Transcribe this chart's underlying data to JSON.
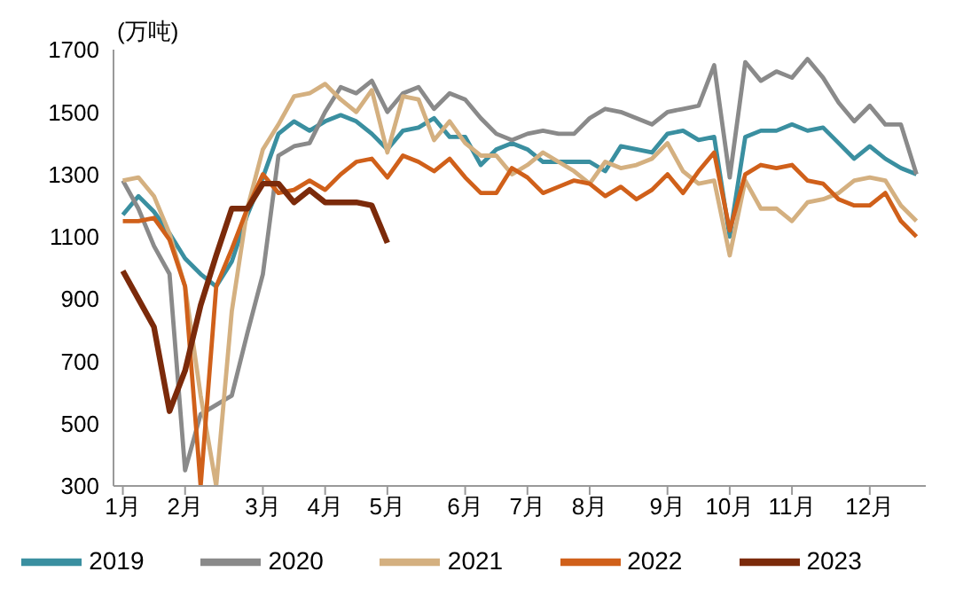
{
  "chart_data": {
    "type": "line",
    "ylabel": "(万吨)",
    "categories": [
      "1月",
      null,
      null,
      null,
      "2月",
      null,
      null,
      null,
      null,
      "3月",
      null,
      null,
      null,
      "4月",
      null,
      null,
      null,
      "5月",
      null,
      null,
      null,
      null,
      "6月",
      null,
      null,
      null,
      "7月",
      null,
      null,
      null,
      "8月",
      null,
      null,
      null,
      null,
      "9月",
      null,
      null,
      null,
      "10月",
      null,
      null,
      null,
      "11月",
      null,
      null,
      null,
      null,
      "12月",
      null,
      null,
      null
    ],
    "ylim": [
      300,
      1700
    ],
    "yticks": [
      300,
      500,
      700,
      900,
      1100,
      1300,
      1500,
      1700
    ],
    "grid": false,
    "legend": "bottom",
    "marker": "none",
    "line_style": "solid",
    "series": [
      {
        "name": "2019",
        "color": "#3a8fa0",
        "values": [
          1170,
          1230,
          1180,
          1110,
          1030,
          980,
          940,
          1020,
          1170,
          1290,
          1430,
          1470,
          1440,
          1470,
          1490,
          1470,
          1430,
          1380,
          1440,
          1450,
          1480,
          1420,
          1420,
          1330,
          1380,
          1400,
          1380,
          1340,
          1340,
          1340,
          1340,
          1310,
          1390,
          1380,
          1370,
          1430,
          1440,
          1410,
          1420,
          1100,
          1420,
          1440,
          1440,
          1460,
          1440,
          1450,
          1400,
          1350,
          1390,
          1350,
          1320,
          1300
        ]
      },
      {
        "name": "2020",
        "color": "#8a8a8a",
        "values": [
          1280,
          1190,
          1070,
          980,
          350,
          530,
          560,
          590,
          790,
          980,
          1360,
          1390,
          1400,
          1500,
          1580,
          1560,
          1600,
          1500,
          1560,
          1580,
          1510,
          1560,
          1540,
          1480,
          1430,
          1410,
          1430,
          1440,
          1430,
          1430,
          1480,
          1510,
          1500,
          1480,
          1460,
          1500,
          1510,
          1520,
          1650,
          1290,
          1660,
          1600,
          1630,
          1610,
          1670,
          1610,
          1530,
          1470,
          1520,
          1460,
          1460,
          1300
        ]
      },
      {
        "name": "2021",
        "color": "#d4b080",
        "values": [
          1280,
          1290,
          1230,
          1110,
          940,
          590,
          300,
          860,
          1190,
          1380,
          1460,
          1550,
          1560,
          1590,
          1540,
          1500,
          1570,
          1370,
          1550,
          1540,
          1410,
          1470,
          1400,
          1360,
          1360,
          1300,
          1330,
          1370,
          1340,
          1310,
          1270,
          1340,
          1320,
          1330,
          1350,
          1400,
          1310,
          1270,
          1280,
          1040,
          1280,
          1190,
          1190,
          1150,
          1210,
          1220,
          1240,
          1280,
          1290,
          1280,
          1200,
          1150
        ]
      },
      {
        "name": "2022",
        "color": "#d0601a",
        "values": [
          1150,
          1150,
          1160,
          1090,
          940,
          300,
          940,
          1060,
          1190,
          1300,
          1240,
          1250,
          1280,
          1250,
          1300,
          1340,
          1350,
          1290,
          1360,
          1340,
          1310,
          1350,
          1290,
          1240,
          1240,
          1320,
          1290,
          1240,
          1260,
          1280,
          1270,
          1230,
          1260,
          1220,
          1250,
          1300,
          1240,
          1310,
          1370,
          1120,
          1300,
          1330,
          1320,
          1330,
          1280,
          1270,
          1220,
          1200,
          1200,
          1240,
          1150,
          1100
        ]
      },
      {
        "name": "2023",
        "color": "#7b2a0a",
        "values": [
          990,
          900,
          810,
          540,
          670,
          880,
          1040,
          1190,
          1190,
          1270,
          1270,
          1210,
          1250,
          1210,
          1210,
          1210,
          1200,
          1080,
          null,
          null,
          null,
          null,
          null,
          null,
          null,
          null,
          null,
          null,
          null,
          null,
          null,
          null,
          null,
          null,
          null,
          null,
          null,
          null,
          null,
          null,
          null,
          null,
          null,
          null,
          null,
          null,
          null,
          null,
          null,
          null,
          null,
          null
        ]
      }
    ]
  }
}
